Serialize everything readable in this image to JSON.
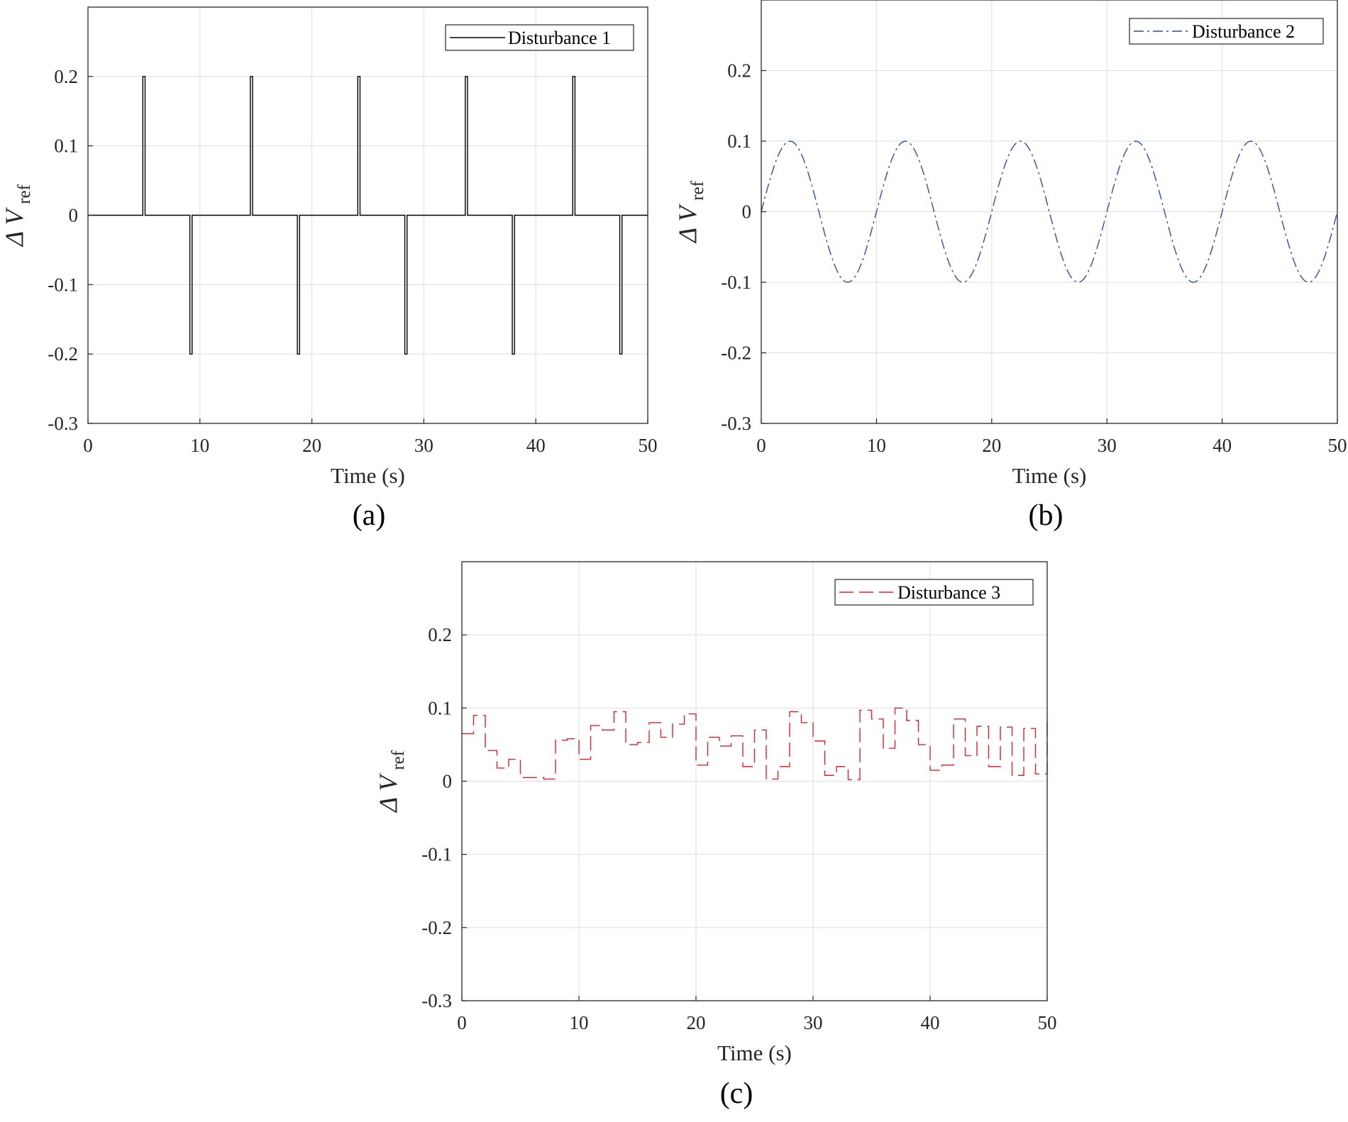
{
  "chart_data": [
    {
      "panel_label": "(a)",
      "type": "line",
      "line_style": "solid",
      "color": "#000000",
      "xlabel": "Time (s)",
      "ylabel_main": "Δ V",
      "ylabel_sub": "ref",
      "xlim": [
        0,
        50
      ],
      "ylim": [
        -0.3,
        0.3
      ],
      "xticks": [
        0,
        10,
        20,
        30,
        40,
        50
      ],
      "yticks": [
        -0.3,
        -0.2,
        -0.1,
        0,
        0.1,
        0.2
      ],
      "grid": true,
      "legend_position": "top-right",
      "series": [
        {
          "name": "Disturbance 1",
          "x": [
            0,
            4.9,
            4.9,
            5.1,
            5.1,
            9.1,
            9.1,
            9.3,
            9.3,
            14.5,
            14.5,
            14.7,
            14.7,
            18.7,
            18.7,
            18.9,
            18.9,
            24.1,
            24.1,
            24.3,
            24.3,
            28.3,
            28.3,
            28.5,
            28.5,
            33.7,
            33.7,
            33.9,
            33.9,
            37.9,
            37.9,
            38.1,
            38.1,
            43.3,
            43.3,
            43.5,
            43.5,
            47.5,
            47.5,
            47.7,
            47.7,
            50
          ],
          "y": [
            0,
            0,
            0.2,
            0.2,
            0,
            0,
            -0.2,
            -0.2,
            0,
            0,
            0.2,
            0.2,
            0,
            0,
            -0.2,
            -0.2,
            0,
            0,
            0.2,
            0.2,
            0,
            0,
            -0.2,
            -0.2,
            0,
            0,
            0.2,
            0.2,
            0,
            0,
            -0.2,
            -0.2,
            0,
            0,
            0.2,
            0.2,
            0,
            0,
            -0.2,
            -0.2,
            0,
            0
          ]
        }
      ]
    },
    {
      "panel_label": "(b)",
      "type": "line",
      "line_style": "dashdot",
      "color": "#2f4f9f",
      "xlabel": "Time (s)",
      "ylabel_main": "Δ V",
      "ylabel_sub": "ref",
      "xlim": [
        0,
        50
      ],
      "ylim": [
        -0.3,
        0.3
      ],
      "xticks": [
        0,
        10,
        20,
        30,
        40,
        50
      ],
      "yticks": [
        -0.3,
        -0.2,
        -0.1,
        0,
        0.1,
        0.2
      ],
      "grid": true,
      "legend_position": "top-right",
      "series": [
        {
          "name": "Disturbance 2",
          "function": "0.1*sin(2*pi*t/10)",
          "amplitude": 0.1,
          "period": 10
        }
      ]
    },
    {
      "panel_label": "(c)",
      "type": "line",
      "line_style": "dashed",
      "color": "#e0202a",
      "xlabel": "Time (s)",
      "ylabel_main": "Δ V",
      "ylabel_sub": "ref",
      "xlim": [
        0,
        50
      ],
      "ylim": [
        -0.3,
        0.3
      ],
      "xticks": [
        0,
        10,
        20,
        30,
        40,
        50
      ],
      "yticks": [
        -0.3,
        -0.2,
        -0.1,
        0,
        0.1,
        0.2
      ],
      "grid": true,
      "legend_position": "top-right",
      "series": [
        {
          "name": "Disturbance 3",
          "step": true,
          "x": [
            0,
            1,
            2,
            3,
            4,
            5,
            6,
            7,
            8,
            9,
            10,
            11,
            12,
            13,
            14,
            15,
            16,
            17,
            18,
            19,
            20,
            21,
            22,
            23,
            24,
            25,
            26,
            27,
            28,
            29,
            30,
            31,
            32,
            33,
            34,
            35,
            36,
            37,
            38,
            39,
            40,
            41,
            42,
            43,
            44,
            45,
            46,
            47,
            48,
            49,
            50
          ],
          "y": [
            0.065,
            0.09,
            0.042,
            0.018,
            0.03,
            0.005,
            0.005,
            0.003,
            0.056,
            0.058,
            0.03,
            0.076,
            0.07,
            0.095,
            0.05,
            0.053,
            0.08,
            0.06,
            0.078,
            0.092,
            0.022,
            0.06,
            0.048,
            0.062,
            0.02,
            0.07,
            0.003,
            0.02,
            0.095,
            0.08,
            0.055,
            0.008,
            0.02,
            0.002,
            0.097,
            0.085,
            0.045,
            0.1,
            0.083,
            0.05,
            0.015,
            0.022,
            0.085,
            0.035,
            0.075,
            0.02,
            0.074,
            0.008,
            0.072,
            0.01,
            0.09
          ]
        }
      ]
    }
  ]
}
